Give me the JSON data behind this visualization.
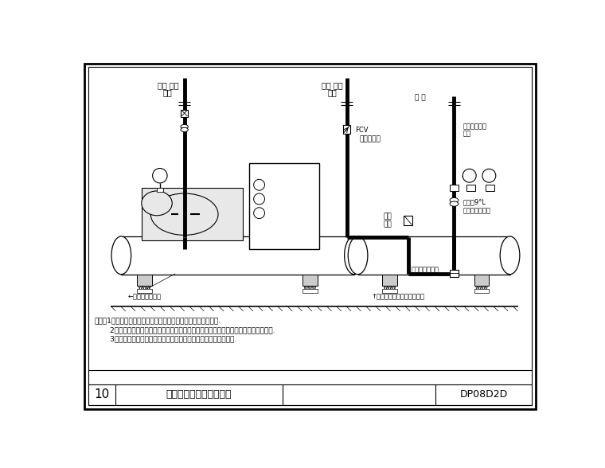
{
  "title": "冰水主機水管安裝示意圖",
  "drawing_number": "DP08D2D",
  "sheet_number": "10",
  "notes": [
    "附注：1、本圖冰水主機之外形為離心式冰水主機，其外形供參考.",
    "       2、任何型式和類之冰水主機，其主要水管均包含冰水進、出水管及冷卻水進、出水管.",
    "       3、在冰水及冷卻水管（共四處）均設置支撐架各橡皮墊減震裝置."
  ]
}
